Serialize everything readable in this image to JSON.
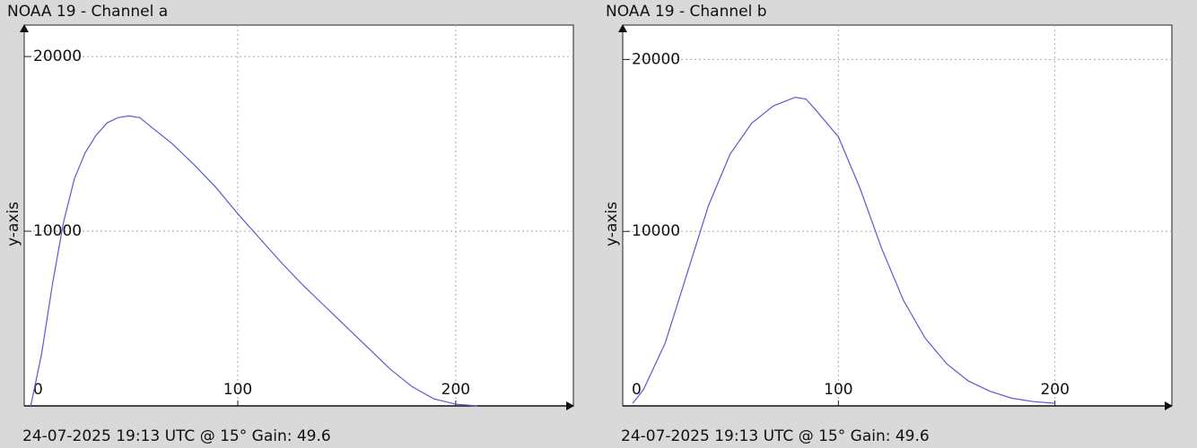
{
  "chart_data": [
    {
      "type": "line",
      "title": "NOAA 19 - Channel a",
      "y_label": "y-axis",
      "footer": "24-07-2025 19:13 UTC @ 15° Gain: 49.6",
      "x": [
        5,
        10,
        15,
        20,
        25,
        30,
        35,
        40,
        45,
        50,
        55,
        60,
        70,
        80,
        90,
        100,
        110,
        120,
        130,
        140,
        150,
        160,
        170,
        180,
        190,
        200,
        210
      ],
      "series": [
        {
          "name": "Channel a",
          "color": "#5a5ad2",
          "values": [
            0,
            3000,
            7000,
            10500,
            13000,
            14500,
            15500,
            16200,
            16500,
            16600,
            16500,
            16000,
            15000,
            13800,
            12500,
            11000,
            9600,
            8200,
            6900,
            5700,
            4500,
            3300,
            2100,
            1100,
            400,
            100,
            0
          ]
        }
      ],
      "xlim": [
        2,
        254
      ],
      "ylim": [
        0,
        21800
      ],
      "xticks": [
        0,
        100,
        200
      ],
      "yticks": [
        10000,
        20000
      ],
      "grid": true
    },
    {
      "type": "line",
      "title": "NOAA 19 - Channel b",
      "y_label": "y-axis",
      "footer": "24-07-2025 19:13 UTC @ 15° Gain: 49.6",
      "x": [
        5,
        10,
        20,
        30,
        40,
        50,
        60,
        70,
        80,
        85,
        90,
        100,
        110,
        120,
        130,
        140,
        150,
        160,
        170,
        180,
        190,
        200
      ],
      "series": [
        {
          "name": "Channel b",
          "color": "#5a5ad2",
          "values": [
            0,
            800,
            3500,
            7500,
            11500,
            14500,
            16300,
            17300,
            17800,
            17700,
            17000,
            15500,
            12500,
            9000,
            6000,
            3800,
            2300,
            1300,
            700,
            300,
            100,
            0
          ]
        }
      ],
      "xlim": [
        0.4,
        254
      ],
      "ylim": [
        -150,
        22000
      ],
      "xticks": [
        0,
        100,
        200
      ],
      "yticks": [
        10000,
        20000
      ],
      "grid": true
    }
  ]
}
